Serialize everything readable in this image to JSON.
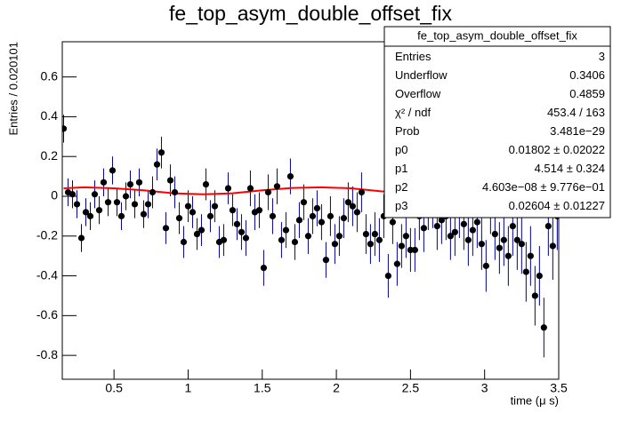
{
  "chart_data": {
    "type": "errorbar",
    "title": "fe_top_asym_double_offset_fix",
    "x_label": "time (μ s)",
    "y_label": "Entries / 0.020101",
    "xlim": [
      0.151,
      3.5
    ],
    "ylim": [
      -0.92,
      0.777
    ],
    "xticks": [
      0.5,
      1,
      1.5,
      2,
      2.5,
      3,
      3.5
    ],
    "yticks": [
      -0.8,
      -0.6,
      -0.4,
      -0.2,
      0,
      0.2,
      0.4,
      0.6
    ],
    "marker_color": "#000000",
    "error_color": "#00008b",
    "x": [
      0.16,
      0.19,
      0.22,
      0.25,
      0.28,
      0.31,
      0.34,
      0.37,
      0.4,
      0.43,
      0.46,
      0.49,
      0.52,
      0.55,
      0.58,
      0.61,
      0.64,
      0.67,
      0.7,
      0.73,
      0.76,
      0.79,
      0.82,
      0.85,
      0.88,
      0.91,
      0.94,
      0.97,
      1.0,
      1.03,
      1.06,
      1.09,
      1.12,
      1.15,
      1.18,
      1.21,
      1.24,
      1.27,
      1.3,
      1.33,
      1.36,
      1.39,
      1.42,
      1.45,
      1.48,
      1.51,
      1.54,
      1.57,
      1.6,
      1.63,
      1.66,
      1.69,
      1.72,
      1.75,
      1.78,
      1.81,
      1.84,
      1.87,
      1.9,
      1.93,
      1.96,
      1.99,
      2.02,
      2.05,
      2.08,
      2.11,
      2.14,
      2.17,
      2.2,
      2.23,
      2.26,
      2.29,
      2.32,
      2.35,
      2.38,
      2.41,
      2.44,
      2.47,
      2.5,
      2.53,
      2.56,
      2.59,
      2.62,
      2.65,
      2.68,
      2.71,
      2.74,
      2.77,
      2.8,
      2.83,
      2.86,
      2.89,
      2.92,
      2.95,
      2.98,
      3.01,
      3.04,
      3.07,
      3.1,
      3.13,
      3.16,
      3.19,
      3.22,
      3.25,
      3.28,
      3.31,
      3.34,
      3.37,
      3.4,
      3.43,
      3.46,
      3.49
    ],
    "values": [
      0.34,
      0.02,
      0.01,
      -0.04,
      -0.21,
      -0.08,
      -0.1,
      0.01,
      -0.07,
      0.07,
      -0.03,
      0.13,
      -0.03,
      -0.1,
      0.0,
      0.06,
      -0.04,
      0.07,
      -0.09,
      -0.04,
      0.02,
      0.16,
      0.22,
      -0.16,
      0.08,
      0.02,
      -0.11,
      -0.23,
      -0.05,
      -0.08,
      -0.19,
      -0.17,
      0.06,
      -0.1,
      -0.05,
      -0.23,
      -0.22,
      0.04,
      -0.07,
      -0.14,
      -0.18,
      -0.21,
      0.04,
      -0.08,
      -0.07,
      -0.36,
      0.02,
      -0.1,
      0.05,
      -0.22,
      -0.17,
      0.1,
      -0.23,
      -0.12,
      -0.03,
      -0.2,
      -0.1,
      -0.06,
      -0.13,
      -0.32,
      -0.1,
      -0.24,
      -0.2,
      -0.11,
      -0.03,
      -0.05,
      -0.08,
      0.02,
      -0.19,
      -0.24,
      -0.19,
      -0.22,
      -0.1,
      -0.4,
      -0.13,
      -0.34,
      -0.25,
      -0.2,
      -0.27,
      -0.27,
      -0.1,
      -0.16,
      -0.05,
      -0.04,
      -0.15,
      -0.12,
      -0.1,
      -0.2,
      -0.18,
      -0.09,
      -0.14,
      -0.22,
      -0.17,
      -0.13,
      -0.24,
      -0.35,
      -0.06,
      -0.19,
      -0.26,
      -0.22,
      -0.3,
      -0.15,
      -0.22,
      -0.24,
      -0.38,
      -0.3,
      -0.5,
      -0.4,
      -0.66,
      -0.15,
      -0.25,
      -0.1
    ],
    "errors": [
      0.07,
      0.07,
      0.07,
      0.07,
      0.07,
      0.07,
      0.07,
      0.07,
      0.07,
      0.07,
      0.07,
      0.07,
      0.07,
      0.07,
      0.07,
      0.07,
      0.07,
      0.07,
      0.07,
      0.07,
      0.08,
      0.08,
      0.08,
      0.08,
      0.08,
      0.08,
      0.08,
      0.08,
      0.08,
      0.08,
      0.08,
      0.08,
      0.08,
      0.08,
      0.08,
      0.08,
      0.08,
      0.08,
      0.08,
      0.08,
      0.09,
      0.09,
      0.09,
      0.09,
      0.09,
      0.09,
      0.09,
      0.09,
      0.09,
      0.09,
      0.09,
      0.09,
      0.09,
      0.09,
      0.09,
      0.09,
      0.09,
      0.09,
      0.09,
      0.09,
      0.1,
      0.1,
      0.1,
      0.1,
      0.1,
      0.1,
      0.1,
      0.1,
      0.1,
      0.1,
      0.11,
      0.11,
      0.11,
      0.11,
      0.11,
      0.11,
      0.11,
      0.11,
      0.11,
      0.11,
      0.12,
      0.12,
      0.12,
      0.12,
      0.12,
      0.12,
      0.12,
      0.12,
      0.12,
      0.12,
      0.13,
      0.13,
      0.13,
      0.13,
      0.13,
      0.13,
      0.13,
      0.13,
      0.13,
      0.13,
      0.15,
      0.15,
      0.15,
      0.15,
      0.15,
      0.15,
      0.15,
      0.15,
      0.15,
      0.15,
      0.17,
      0.17
    ],
    "fit": {
      "color": "#ff0000",
      "x": [
        0.16,
        0.3,
        0.5,
        0.7,
        0.9,
        1.1,
        1.3,
        1.5,
        1.7,
        1.9,
        2.1,
        2.3,
        2.5,
        2.7,
        2.9,
        3.1,
        3.3,
        3.5
      ],
      "values": [
        0.04,
        0.045,
        0.04,
        0.03,
        0.015,
        0.01,
        0.015,
        0.03,
        0.042,
        0.045,
        0.04,
        0.025,
        0.015,
        0.02,
        0.035,
        0.04,
        0.03,
        0.02
      ]
    },
    "stats": {
      "title": "fe_top_asym_double_offset_fix",
      "rows": [
        [
          "Entries",
          "3"
        ],
        [
          "Underflow",
          "0.3406"
        ],
        [
          "Overflow",
          "0.4859"
        ],
        [
          "χ² / ndf",
          "453.4 / 163"
        ],
        [
          "Prob",
          "3.481e−29"
        ],
        [
          "p0",
          "0.01802 ± 0.02022"
        ],
        [
          "p1",
          "4.514 ± 0.324"
        ],
        [
          "p2",
          "4.603e−08 ± 9.776e−01"
        ],
        [
          "p3",
          "0.02604 ± 0.01227"
        ]
      ]
    }
  }
}
